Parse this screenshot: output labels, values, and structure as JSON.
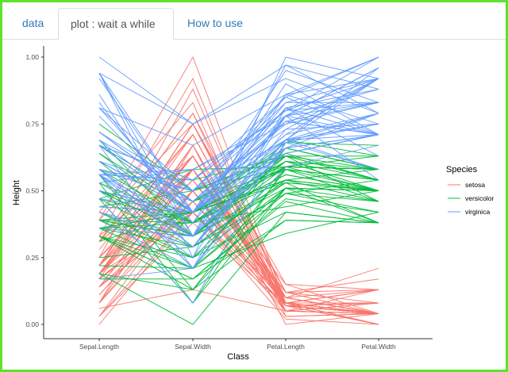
{
  "tabs": [
    {
      "label": "data",
      "active": false
    },
    {
      "label": "plot : wait a while",
      "active": true
    },
    {
      "label": "How to use",
      "active": false
    }
  ],
  "colors": {
    "setosa": "#F8766D",
    "versicolor": "#00BA38",
    "virginica": "#619CFF",
    "frame": "#5ee22d"
  },
  "chart_data": {
    "type": "line",
    "title": "",
    "xlabel": "Class",
    "ylabel": "Height",
    "ylim": [
      0,
      1
    ],
    "yticks": [
      "0.00",
      "0.25",
      "0.50",
      "0.75",
      "1.00"
    ],
    "categories": [
      "Sepal.Length",
      "Sepal.Width",
      "Petal.Length",
      "Petal.Width"
    ],
    "legend": {
      "title": "Species",
      "position": "right",
      "entries": [
        "setosa",
        "versicolor",
        "virginica"
      ]
    },
    "grid": false,
    "series": [
      {
        "name": "setosa",
        "lines": [
          [
            0.22,
            0.63,
            0.07,
            0.04
          ],
          [
            0.17,
            0.42,
            0.07,
            0.04
          ],
          [
            0.11,
            0.5,
            0.05,
            0.04
          ],
          [
            0.08,
            0.46,
            0.08,
            0.04
          ],
          [
            0.19,
            0.67,
            0.07,
            0.04
          ],
          [
            0.31,
            0.79,
            0.12,
            0.13
          ],
          [
            0.08,
            0.58,
            0.07,
            0.08
          ],
          [
            0.19,
            0.58,
            0.08,
            0.04
          ],
          [
            0.03,
            0.38,
            0.07,
            0.04
          ],
          [
            0.17,
            0.46,
            0.08,
            0.0
          ],
          [
            0.31,
            0.71,
            0.08,
            0.04
          ],
          [
            0.14,
            0.58,
            0.1,
            0.04
          ],
          [
            0.14,
            0.42,
            0.07,
            0.0
          ],
          [
            0.0,
            0.42,
            0.02,
            0.0
          ],
          [
            0.42,
            0.83,
            0.03,
            0.04
          ],
          [
            0.39,
            1.0,
            0.08,
            0.13
          ],
          [
            0.31,
            0.79,
            0.05,
            0.13
          ],
          [
            0.22,
            0.63,
            0.07,
            0.08
          ],
          [
            0.39,
            0.75,
            0.12,
            0.08
          ],
          [
            0.22,
            0.75,
            0.08,
            0.08
          ],
          [
            0.31,
            0.58,
            0.12,
            0.04
          ],
          [
            0.22,
            0.71,
            0.08,
            0.13
          ],
          [
            0.08,
            0.67,
            0.0,
            0.04
          ],
          [
            0.22,
            0.54,
            0.12,
            0.17
          ],
          [
            0.14,
            0.58,
            0.15,
            0.04
          ],
          [
            0.19,
            0.42,
            0.1,
            0.04
          ],
          [
            0.19,
            0.58,
            0.1,
            0.13
          ],
          [
            0.25,
            0.63,
            0.08,
            0.04
          ],
          [
            0.25,
            0.58,
            0.07,
            0.04
          ],
          [
            0.11,
            0.5,
            0.1,
            0.04
          ],
          [
            0.14,
            0.46,
            0.1,
            0.04
          ],
          [
            0.31,
            0.58,
            0.08,
            0.13
          ],
          [
            0.25,
            0.88,
            0.08,
            0.0
          ],
          [
            0.33,
            0.92,
            0.07,
            0.04
          ],
          [
            0.17,
            0.46,
            0.08,
            0.04
          ],
          [
            0.19,
            0.5,
            0.03,
            0.04
          ],
          [
            0.33,
            0.63,
            0.05,
            0.04
          ],
          [
            0.17,
            0.67,
            0.07,
            0.0
          ],
          [
            0.03,
            0.42,
            0.05,
            0.04
          ],
          [
            0.22,
            0.58,
            0.08,
            0.04
          ],
          [
            0.19,
            0.63,
            0.05,
            0.08
          ],
          [
            0.06,
            0.13,
            0.05,
            0.08
          ],
          [
            0.03,
            0.5,
            0.05,
            0.04
          ],
          [
            0.19,
            0.63,
            0.1,
            0.21
          ],
          [
            0.22,
            0.75,
            0.15,
            0.13
          ],
          [
            0.14,
            0.42,
            0.07,
            0.08
          ],
          [
            0.22,
            0.75,
            0.1,
            0.04
          ],
          [
            0.08,
            0.5,
            0.07,
            0.04
          ],
          [
            0.28,
            0.71,
            0.08,
            0.04
          ],
          [
            0.19,
            0.54,
            0.07,
            0.04
          ]
        ]
      },
      {
        "name": "versicolor",
        "lines": [
          [
            0.75,
            0.5,
            0.63,
            0.54
          ],
          [
            0.58,
            0.5,
            0.59,
            0.58
          ],
          [
            0.72,
            0.46,
            0.66,
            0.58
          ],
          [
            0.33,
            0.13,
            0.51,
            0.5
          ],
          [
            0.61,
            0.33,
            0.61,
            0.58
          ],
          [
            0.39,
            0.33,
            0.59,
            0.5
          ],
          [
            0.56,
            0.54,
            0.63,
            0.63
          ],
          [
            0.17,
            0.17,
            0.39,
            0.38
          ],
          [
            0.64,
            0.38,
            0.61,
            0.5
          ],
          [
            0.25,
            0.29,
            0.49,
            0.54
          ],
          [
            0.19,
            0.0,
            0.42,
            0.38
          ],
          [
            0.44,
            0.42,
            0.54,
            0.58
          ],
          [
            0.47,
            0.08,
            0.51,
            0.38
          ],
          [
            0.5,
            0.38,
            0.63,
            0.54
          ],
          [
            0.36,
            0.38,
            0.44,
            0.5
          ],
          [
            0.67,
            0.46,
            0.58,
            0.54
          ],
          [
            0.36,
            0.42,
            0.59,
            0.58
          ],
          [
            0.42,
            0.29,
            0.53,
            0.38
          ],
          [
            0.53,
            0.08,
            0.59,
            0.58
          ],
          [
            0.36,
            0.21,
            0.49,
            0.42
          ],
          [
            0.44,
            0.5,
            0.64,
            0.71
          ],
          [
            0.5,
            0.33,
            0.51,
            0.5
          ],
          [
            0.56,
            0.21,
            0.66,
            0.58
          ],
          [
            0.5,
            0.33,
            0.63,
            0.46
          ],
          [
            0.58,
            0.38,
            0.56,
            0.5
          ],
          [
            0.64,
            0.42,
            0.58,
            0.54
          ],
          [
            0.69,
            0.33,
            0.64,
            0.54
          ],
          [
            0.67,
            0.42,
            0.68,
            0.67
          ],
          [
            0.47,
            0.38,
            0.59,
            0.58
          ],
          [
            0.39,
            0.25,
            0.42,
            0.38
          ],
          [
            0.33,
            0.17,
            0.47,
            0.42
          ],
          [
            0.33,
            0.17,
            0.46,
            0.38
          ],
          [
            0.42,
            0.29,
            0.49,
            0.46
          ],
          [
            0.47,
            0.29,
            0.69,
            0.63
          ],
          [
            0.31,
            0.42,
            0.59,
            0.58
          ],
          [
            0.47,
            0.58,
            0.59,
            0.63
          ],
          [
            0.67,
            0.46,
            0.63,
            0.58
          ],
          [
            0.56,
            0.13,
            0.58,
            0.5
          ],
          [
            0.36,
            0.42,
            0.53,
            0.5
          ],
          [
            0.33,
            0.21,
            0.51,
            0.5
          ],
          [
            0.33,
            0.25,
            0.58,
            0.46
          ],
          [
            0.5,
            0.42,
            0.61,
            0.54
          ],
          [
            0.42,
            0.25,
            0.51,
            0.46
          ],
          [
            0.19,
            0.13,
            0.39,
            0.38
          ],
          [
            0.36,
            0.29,
            0.54,
            0.5
          ],
          [
            0.39,
            0.42,
            0.54,
            0.46
          ],
          [
            0.39,
            0.38,
            0.54,
            0.5
          ],
          [
            0.53,
            0.38,
            0.56,
            0.5
          ],
          [
            0.22,
            0.21,
            0.34,
            0.42
          ],
          [
            0.39,
            0.33,
            0.53,
            0.5
          ]
        ]
      },
      {
        "name": "virginica",
        "lines": [
          [
            0.56,
            0.54,
            0.85,
            1.0
          ],
          [
            0.42,
            0.29,
            0.69,
            0.75
          ],
          [
            0.78,
            0.42,
            0.83,
            0.83
          ],
          [
            0.56,
            0.38,
            0.78,
            0.71
          ],
          [
            0.61,
            0.42,
            0.81,
            0.88
          ],
          [
            0.92,
            0.42,
            0.95,
            0.83
          ],
          [
            0.17,
            0.21,
            0.59,
            0.67
          ],
          [
            0.83,
            0.38,
            0.9,
            0.71
          ],
          [
            0.67,
            0.21,
            0.81,
            0.71
          ],
          [
            0.81,
            0.67,
            0.86,
            1.0
          ],
          [
            0.61,
            0.5,
            0.69,
            0.79
          ],
          [
            0.58,
            0.29,
            0.73,
            0.75
          ],
          [
            0.69,
            0.42,
            0.76,
            0.83
          ],
          [
            0.39,
            0.21,
            0.68,
            0.79
          ],
          [
            0.42,
            0.33,
            0.69,
            0.96
          ],
          [
            0.58,
            0.5,
            0.73,
            0.92
          ],
          [
            0.61,
            0.42,
            0.76,
            0.71
          ],
          [
            0.94,
            0.75,
            0.97,
            0.88
          ],
          [
            0.94,
            0.25,
            1.0,
            0.92
          ],
          [
            0.47,
            0.08,
            0.68,
            0.58
          ],
          [
            0.72,
            0.5,
            0.8,
            0.92
          ],
          [
            0.36,
            0.33,
            0.66,
            0.79
          ],
          [
            0.94,
            0.33,
            0.97,
            0.79
          ],
          [
            0.56,
            0.29,
            0.66,
            0.71
          ],
          [
            0.67,
            0.54,
            0.8,
            0.83
          ],
          [
            0.81,
            0.5,
            0.85,
            0.71
          ],
          [
            0.53,
            0.33,
            0.64,
            0.71
          ],
          [
            0.5,
            0.42,
            0.66,
            0.71
          ],
          [
            0.58,
            0.33,
            0.78,
            0.83
          ],
          [
            0.81,
            0.42,
            0.81,
            0.63
          ],
          [
            0.86,
            0.33,
            0.86,
            0.75
          ],
          [
            1.0,
            0.75,
            0.92,
            0.79
          ],
          [
            0.58,
            0.33,
            0.78,
            0.88
          ],
          [
            0.56,
            0.33,
            0.69,
            0.58
          ],
          [
            0.5,
            0.25,
            0.78,
            0.54
          ],
          [
            0.94,
            0.42,
            0.86,
            0.92
          ],
          [
            0.56,
            0.58,
            0.78,
            0.96
          ],
          [
            0.58,
            0.46,
            0.76,
            0.71
          ],
          [
            0.47,
            0.42,
            0.64,
            0.71
          ],
          [
            0.72,
            0.46,
            0.75,
            0.83
          ],
          [
            0.67,
            0.46,
            0.78,
            0.96
          ],
          [
            0.72,
            0.46,
            0.69,
            0.92
          ],
          [
            0.42,
            0.29,
            0.69,
            0.75
          ],
          [
            0.69,
            0.5,
            0.83,
            0.92
          ],
          [
            0.67,
            0.54,
            0.8,
            1.0
          ],
          [
            0.67,
            0.42,
            0.71,
            0.92
          ],
          [
            0.56,
            0.21,
            0.68,
            0.75
          ],
          [
            0.61,
            0.42,
            0.71,
            0.79
          ],
          [
            0.53,
            0.58,
            0.75,
            0.92
          ],
          [
            0.44,
            0.42,
            0.69,
            0.71
          ]
        ]
      }
    ]
  }
}
